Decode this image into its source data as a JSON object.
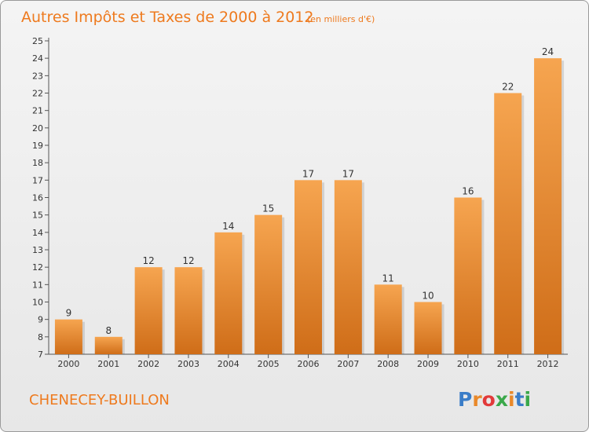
{
  "title": "Autres Impôts et Taxes de 2000 à 2012",
  "subtitle": "(en milliers d'€)",
  "commune": "CHENECEY-BUILLON",
  "logo": {
    "text": "Proxiti",
    "letter_colors": [
      "#3a7dc8",
      "#e9892a",
      "#e23a3a",
      "#3aa84a",
      "#e9892a",
      "#3a7dc8",
      "#3aa84a"
    ]
  },
  "colors": {
    "accent": "#ee7a1e",
    "bar_light": "#f6a550",
    "bar_dark": "#cf6d18"
  },
  "chart_data": {
    "type": "bar",
    "categories": [
      "2000",
      "2001",
      "2002",
      "2003",
      "2004",
      "2005",
      "2006",
      "2007",
      "2008",
      "2009",
      "2010",
      "2011",
      "2012"
    ],
    "values": [
      9,
      8,
      12,
      12,
      14,
      15,
      17,
      17,
      11,
      10,
      16,
      22,
      24
    ],
    "ylim": [
      7,
      25
    ],
    "yticks": [
      7,
      8,
      9,
      10,
      11,
      12,
      13,
      14,
      15,
      16,
      17,
      18,
      19,
      20,
      21,
      22,
      23,
      24,
      25
    ],
    "grid": false,
    "legend": "none"
  }
}
